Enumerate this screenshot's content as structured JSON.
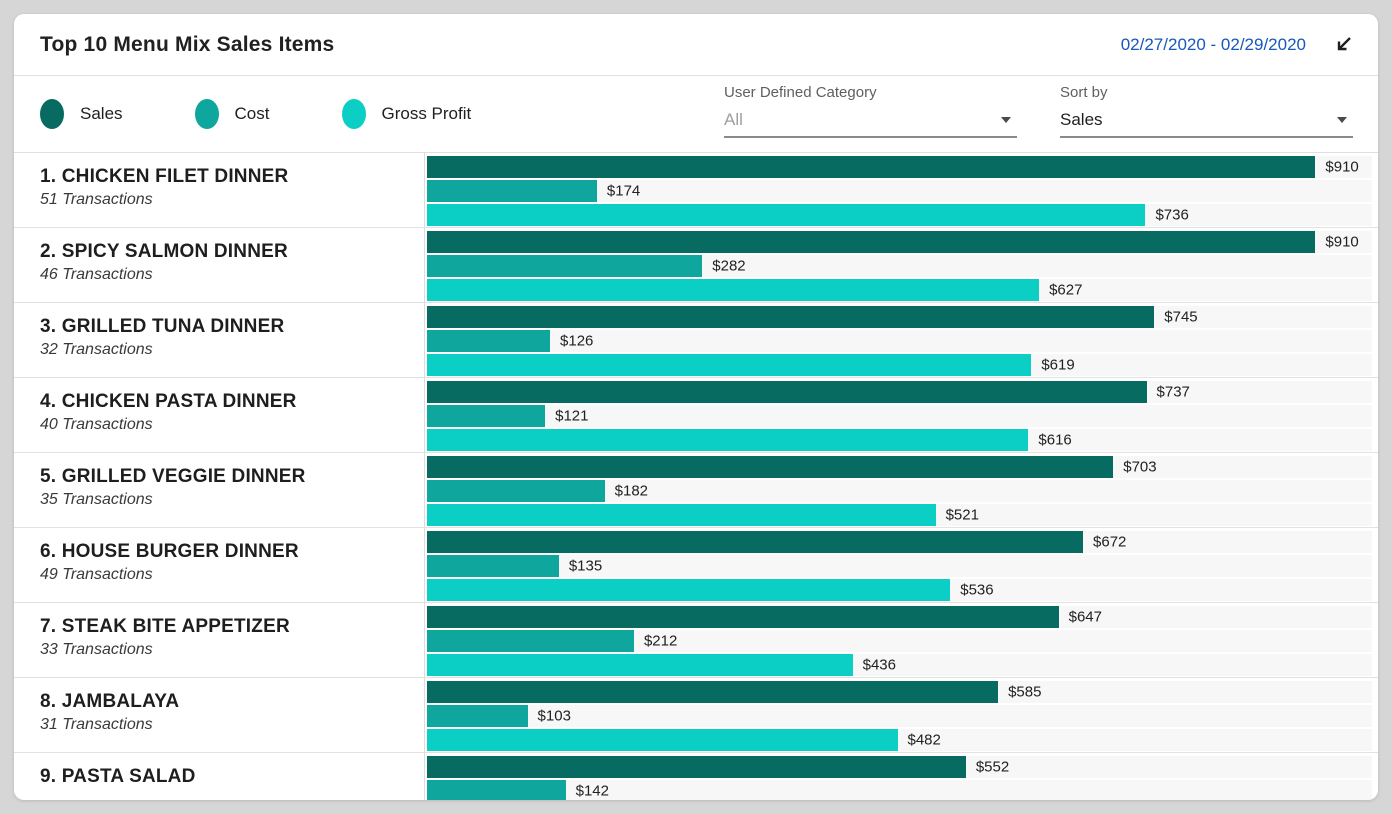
{
  "header": {
    "title": "Top 10 Menu Mix Sales Items",
    "date_range": "02/27/2020 - 02/29/2020",
    "expand_icon": "arrow-down-left-icon",
    "date_color": "#1658bb"
  },
  "legend": {
    "items": [
      {
        "label": "Sales",
        "color": "#076b62"
      },
      {
        "label": "Cost",
        "color": "#0fa79d"
      },
      {
        "label": "Gross Profit",
        "color": "#0bcec5"
      }
    ]
  },
  "filters": {
    "category": {
      "label": "User Defined Category",
      "value": "All",
      "state": "placeholder"
    },
    "sort": {
      "label": "Sort by",
      "value": "Sales",
      "state": "filled"
    }
  },
  "chart_data": {
    "type": "bar",
    "orientation": "horizontal",
    "title": "Top 10 Menu Mix Sales Items",
    "xlim": [
      0,
      968
    ],
    "grid": false,
    "legend_position": "top-left",
    "series": [
      {
        "name": "Sales",
        "color": "#076b62"
      },
      {
        "name": "Cost",
        "color": "#0fa79d"
      },
      {
        "name": "Gross Profit",
        "color": "#0bcec5"
      }
    ],
    "items": [
      {
        "rank": "1.",
        "name": "CHICKEN FILET DINNER",
        "transactions": "51 Transactions",
        "values": [
          910,
          174,
          736
        ],
        "labels": [
          "$910",
          "$174",
          "$736"
        ]
      },
      {
        "rank": "2.",
        "name": "SPICY SALMON DINNER",
        "transactions": "46 Transactions",
        "values": [
          910,
          282,
          627
        ],
        "labels": [
          "$910",
          "$282",
          "$627"
        ]
      },
      {
        "rank": "3.",
        "name": "GRILLED TUNA DINNER",
        "transactions": "32 Transactions",
        "values": [
          745,
          126,
          619
        ],
        "labels": [
          "$745",
          "$126",
          "$619"
        ]
      },
      {
        "rank": "4.",
        "name": "CHICKEN PASTA DINNER",
        "transactions": "40 Transactions",
        "values": [
          737,
          121,
          616
        ],
        "labels": [
          "$737",
          "$121",
          "$616"
        ]
      },
      {
        "rank": "5.",
        "name": "GRILLED VEGGIE DINNER",
        "transactions": "35 Transactions",
        "values": [
          703,
          182,
          521
        ],
        "labels": [
          "$703",
          "$182",
          "$521"
        ]
      },
      {
        "rank": "6.",
        "name": "HOUSE BURGER DINNER",
        "transactions": "49 Transactions",
        "values": [
          672,
          135,
          536
        ],
        "labels": [
          "$672",
          "$135",
          "$536"
        ]
      },
      {
        "rank": "7.",
        "name": "STEAK BITE APPETIZER",
        "transactions": "33 Transactions",
        "values": [
          647,
          212,
          436
        ],
        "labels": [
          "$647",
          "$212",
          "$436"
        ]
      },
      {
        "rank": "8.",
        "name": "JAMBALAYA",
        "transactions": "31 Transactions",
        "values": [
          585,
          103,
          482
        ],
        "labels": [
          "$585",
          "$103",
          "$482"
        ]
      },
      {
        "rank": "9.",
        "name": "PASTA SALAD",
        "transactions": "",
        "values": [
          552,
          142,
          null
        ],
        "labels": [
          "$552",
          "$142",
          null
        ]
      }
    ]
  }
}
